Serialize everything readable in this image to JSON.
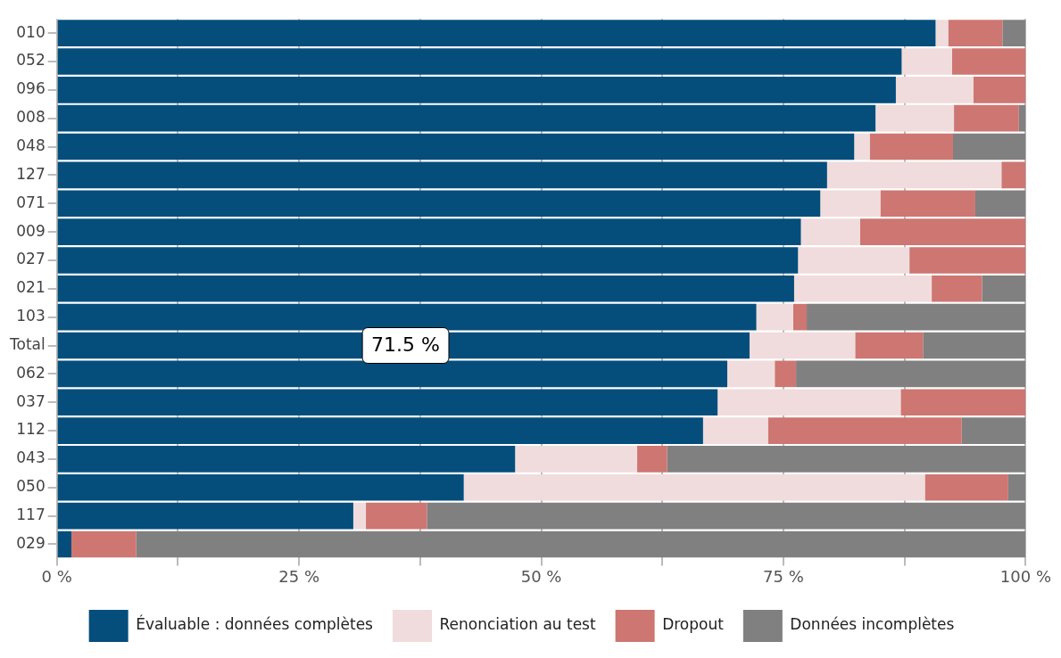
{
  "chart_data": {
    "type": "bar",
    "orientation": "horizontal",
    "stacked": true,
    "categories": [
      "010",
      "052",
      "096",
      "008",
      "048",
      "127",
      "071",
      "009",
      "027",
      "021",
      "103",
      "Total",
      "062",
      "037",
      "112",
      "043",
      "050",
      "117",
      "029"
    ],
    "series": [
      {
        "name": "Évaluable : données complètes",
        "color": "#054e7c",
        "values": [
          90.7,
          87.2,
          86.6,
          84.5,
          82.3,
          79.5,
          78.8,
          76.8,
          76.5,
          76.1,
          72.2,
          71.5,
          69.2,
          68.2,
          66.7,
          47.3,
          42.0,
          30.6,
          1.5
        ]
      },
      {
        "name": "Renonciation au test",
        "color": "#f0dcdc",
        "values": [
          1.3,
          5.2,
          8.0,
          8.1,
          1.6,
          18.0,
          6.2,
          6.1,
          11.5,
          14.2,
          3.8,
          10.9,
          4.9,
          18.9,
          6.7,
          12.6,
          47.6,
          1.3,
          0
        ]
      },
      {
        "name": "Dropout",
        "color": "#cd7672",
        "values": [
          5.6,
          7.6,
          5.4,
          6.7,
          8.6,
          2.5,
          9.8,
          17.1,
          12.0,
          5.2,
          1.4,
          7.0,
          2.2,
          12.9,
          20.0,
          3.1,
          8.6,
          6.3,
          6.7
        ]
      },
      {
        "name": "Données incomplètes",
        "color": "#808080",
        "values": [
          2.4,
          0,
          0,
          0.7,
          7.5,
          0,
          5.2,
          0,
          0,
          4.5,
          22.6,
          10.6,
          23.7,
          0,
          6.6,
          37.0,
          1.8,
          61.8,
          91.8
        ]
      }
    ],
    "xlim": [
      0,
      100
    ],
    "xticks": [
      {
        "value": 0,
        "label": "0 %"
      },
      {
        "value": 12.5,
        "label": null
      },
      {
        "value": 25,
        "label": "25 %"
      },
      {
        "value": 37.5,
        "label": null
      },
      {
        "value": 50,
        "label": "50 %"
      },
      {
        "value": 62.5,
        "label": null
      },
      {
        "value": 75,
        "label": "75 %"
      },
      {
        "value": 87.5,
        "label": null
      },
      {
        "value": 100,
        "label": "100 %"
      }
    ],
    "annotations": [
      {
        "text": "71.5 %",
        "x": 36,
        "y": "Total"
      }
    ],
    "grid": "x",
    "legend": "bottom"
  }
}
